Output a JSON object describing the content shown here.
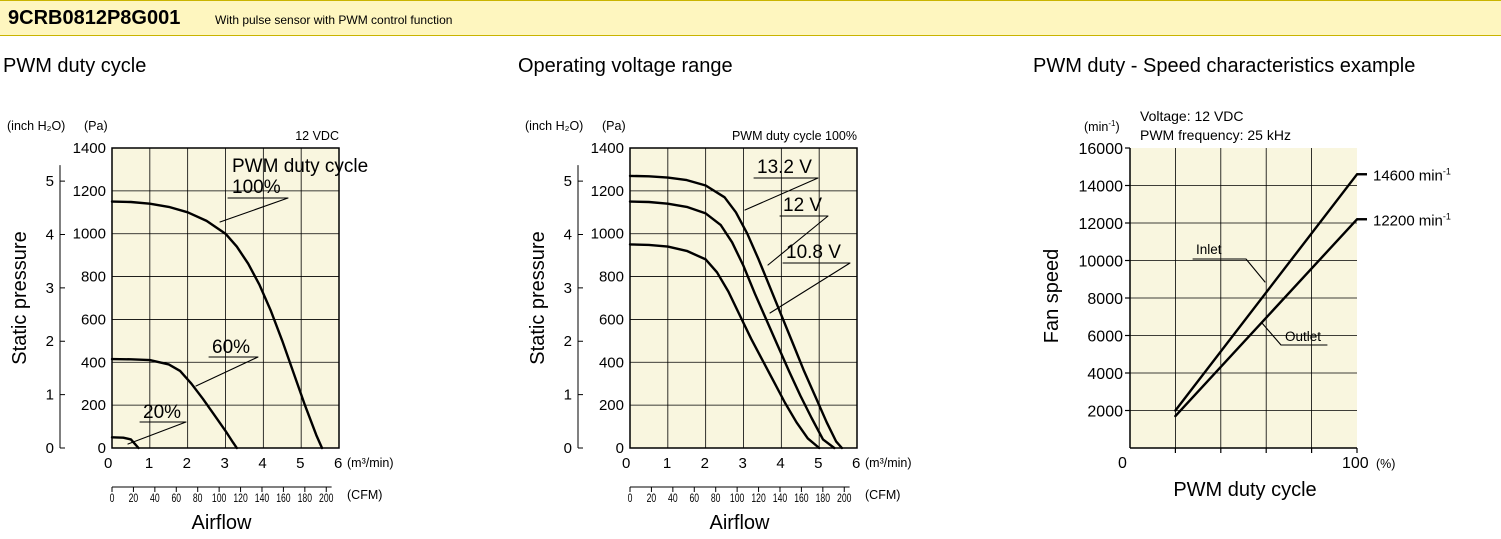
{
  "header": {
    "model": "9CRB0812P8G001",
    "description": "With pulse sensor with PWM control function",
    "colors": {
      "band": "#fef6bf",
      "plot_bg": "#f9f6df",
      "line": "#000000"
    }
  },
  "charts": {
    "pwm_duty_cycle": {
      "title": "PWM duty cycle",
      "unit_left": "(inch H₂O)",
      "unit_pa": "(Pa)",
      "condition": "12 VDC",
      "legend_title": "PWM duty cycle",
      "xunit": "(m³/min)",
      "cfm_unit": "(CFM)",
      "xlabel": "Airflow",
      "ylabel": "Static pressure"
    },
    "operating_voltage": {
      "title": "Operating voltage range",
      "unit_left": "(inch H₂O)",
      "unit_pa": "(Pa)",
      "condition": "PWM duty cycle 100%",
      "xunit": "(m³/min)",
      "cfm_unit": "(CFM)",
      "xlabel": "Airflow",
      "ylabel": "Static pressure"
    },
    "speed_characteristics": {
      "title": "PWM duty - Speed characteristics example",
      "yunit": "(min",
      "yunit_sup": "-1",
      "yunit_close": ")",
      "condition_1": "Voltage: 12 VDC",
      "condition_2": "PWM frequency: 25 kHz",
      "xlabel": "PWM duty cycle",
      "ylabel": "Fan speed",
      "x_zero": "0",
      "x_hundred": "100",
      "x_pct": "(%)"
    }
  },
  "chart_data": [
    {
      "type": "line",
      "title": "PWM duty cycle",
      "xlabel": "Airflow",
      "ylabel": "Static pressure",
      "xlim": [
        0,
        6
      ],
      "ylim": [
        0,
        1400
      ],
      "grid": true,
      "x_ticks": [
        "0",
        "1",
        "2",
        "3",
        "4",
        "5",
        "6"
      ],
      "y_ticks": [
        "0",
        "200",
        "400",
        "600",
        "800",
        "1000",
        "1200",
        "1400"
      ],
      "y2_ticks": [
        "0",
        "1",
        "2",
        "3",
        "4",
        "5"
      ],
      "cfm_ticks": [
        "0",
        "20",
        "40",
        "60",
        "80",
        "100",
        "120",
        "140",
        "160",
        "180",
        "200"
      ],
      "series": [
        {
          "name": "100%",
          "x": [
            0,
            0.5,
            1.0,
            1.5,
            2.0,
            2.5,
            3.0,
            3.3,
            3.6,
            3.9,
            4.2,
            4.5,
            4.8,
            5.1,
            5.4,
            5.55
          ],
          "y": [
            1150,
            1148,
            1140,
            1125,
            1100,
            1060,
            1000,
            940,
            860,
            760,
            640,
            500,
            350,
            200,
            60,
            0
          ]
        },
        {
          "name": "60%",
          "x": [
            0,
            0.5,
            1.0,
            1.5,
            1.8,
            2.1,
            2.4,
            2.7,
            3.0,
            3.2,
            3.3
          ],
          "y": [
            415,
            414,
            410,
            390,
            360,
            300,
            230,
            155,
            80,
            25,
            0
          ]
        },
        {
          "name": "20%",
          "x": [
            0,
            0.3,
            0.5,
            0.6,
            0.7
          ],
          "y": [
            50,
            48,
            40,
            20,
            0
          ]
        }
      ]
    },
    {
      "type": "line",
      "title": "Operating voltage range",
      "xlabel": "Airflow",
      "ylabel": "Static pressure",
      "xlim": [
        0,
        6
      ],
      "ylim": [
        0,
        1400
      ],
      "grid": true,
      "x_ticks": [
        "0",
        "1",
        "2",
        "3",
        "4",
        "5",
        "6"
      ],
      "y_ticks": [
        "0",
        "200",
        "400",
        "600",
        "800",
        "1000",
        "1200",
        "1400"
      ],
      "y2_ticks": [
        "0",
        "1",
        "2",
        "3",
        "4",
        "5"
      ],
      "cfm_ticks": [
        "0",
        "20",
        "40",
        "60",
        "80",
        "100",
        "120",
        "140",
        "160",
        "180",
        "200"
      ],
      "series": [
        {
          "name": "13.2 V",
          "x": [
            0,
            0.5,
            1.0,
            1.5,
            2.0,
            2.5,
            2.8,
            3.1,
            3.4,
            3.7,
            4.0,
            4.3,
            4.6,
            4.9,
            5.2,
            5.45,
            5.6
          ],
          "y": [
            1270,
            1268,
            1262,
            1250,
            1225,
            1170,
            1100,
            1000,
            880,
            750,
            620,
            490,
            360,
            240,
            120,
            30,
            0
          ]
        },
        {
          "name": "12 V",
          "x": [
            0,
            0.5,
            1.0,
            1.5,
            2.0,
            2.4,
            2.7,
            3.0,
            3.3,
            3.6,
            3.9,
            4.2,
            4.5,
            4.8,
            5.1,
            5.4
          ],
          "y": [
            1150,
            1148,
            1140,
            1125,
            1095,
            1040,
            960,
            850,
            720,
            600,
            480,
            360,
            245,
            140,
            40,
            0
          ]
        },
        {
          "name": "10.8 V",
          "x": [
            0,
            0.5,
            1.0,
            1.5,
            2.0,
            2.3,
            2.6,
            2.9,
            3.2,
            3.5,
            3.8,
            4.1,
            4.4,
            4.7,
            5.0
          ],
          "y": [
            950,
            948,
            940,
            920,
            880,
            820,
            730,
            620,
            510,
            410,
            310,
            210,
            120,
            45,
            0
          ]
        }
      ]
    },
    {
      "type": "line",
      "title": "PWM duty - Speed characteristics example",
      "xlabel": "PWM duty cycle",
      "ylabel": "Fan speed",
      "xlim": [
        0,
        100
      ],
      "ylim": [
        0,
        16000
      ],
      "grid": true,
      "y_ticks": [
        "2000",
        "4000",
        "6000",
        "8000",
        "10000",
        "12000",
        "14000",
        "16000"
      ],
      "series": [
        {
          "name": "Inlet",
          "x": [
            20,
            100
          ],
          "y": [
            2000,
            14600
          ],
          "end_label": "14600"
        },
        {
          "name": "Outlet",
          "x": [
            20,
            100
          ],
          "y": [
            1700,
            12200
          ],
          "end_label": "12200"
        }
      ],
      "end_label_unit": "min",
      "end_label_sup": "-1"
    }
  ]
}
